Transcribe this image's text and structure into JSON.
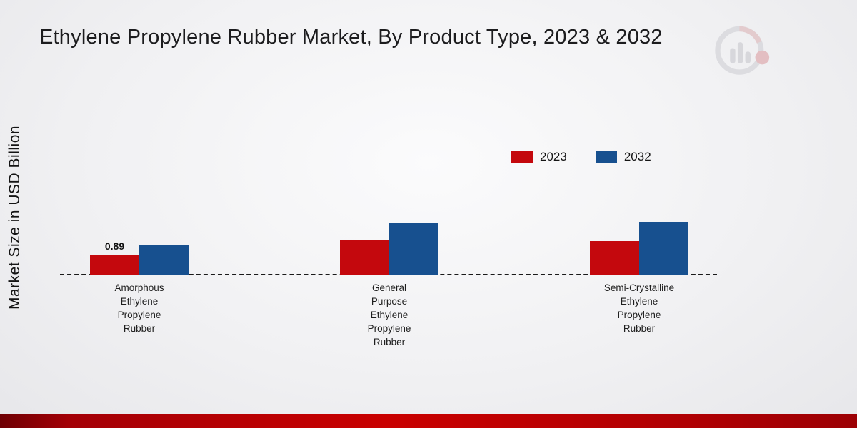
{
  "title": "Ethylene Propylene Rubber Market, By Product Type, 2023 & 2032",
  "y_axis_label": "Market Size in USD Billion",
  "chart_data": {
    "type": "bar",
    "title": "Ethylene Propylene Rubber Market, By Product Type, 2023 & 2032",
    "ylabel": "Market Size in USD Billion",
    "xlabel": "",
    "categories": [
      "Amorphous Ethylene Propylene Rubber",
      "General Purpose Ethylene Propylene Rubber",
      "Semi-Crystalline Ethylene Propylene Rubber"
    ],
    "category_labels": [
      "Amorphous\nEthylene\nPropylene\nRubber",
      "General\nPurpose\nEthylene\nPropylene\nRubber",
      "Semi-Crystalline\nEthylene\nPropylene\nRubber"
    ],
    "series": [
      {
        "name": "2023",
        "color": "#c4080d",
        "values": [
          0.89,
          1.6,
          1.55
        ]
      },
      {
        "name": "2032",
        "color": "#17508f",
        "values": [
          1.35,
          2.4,
          2.45
        ]
      }
    ],
    "data_labels": [
      {
        "series_index": 0,
        "category_index": 0,
        "text": "0.89"
      }
    ],
    "ylim": [
      0,
      2.6
    ],
    "grid": false,
    "axis_line_style": "dashed",
    "legend_position": "top-right"
  },
  "footer": {
    "accent_color": "#c90000"
  }
}
